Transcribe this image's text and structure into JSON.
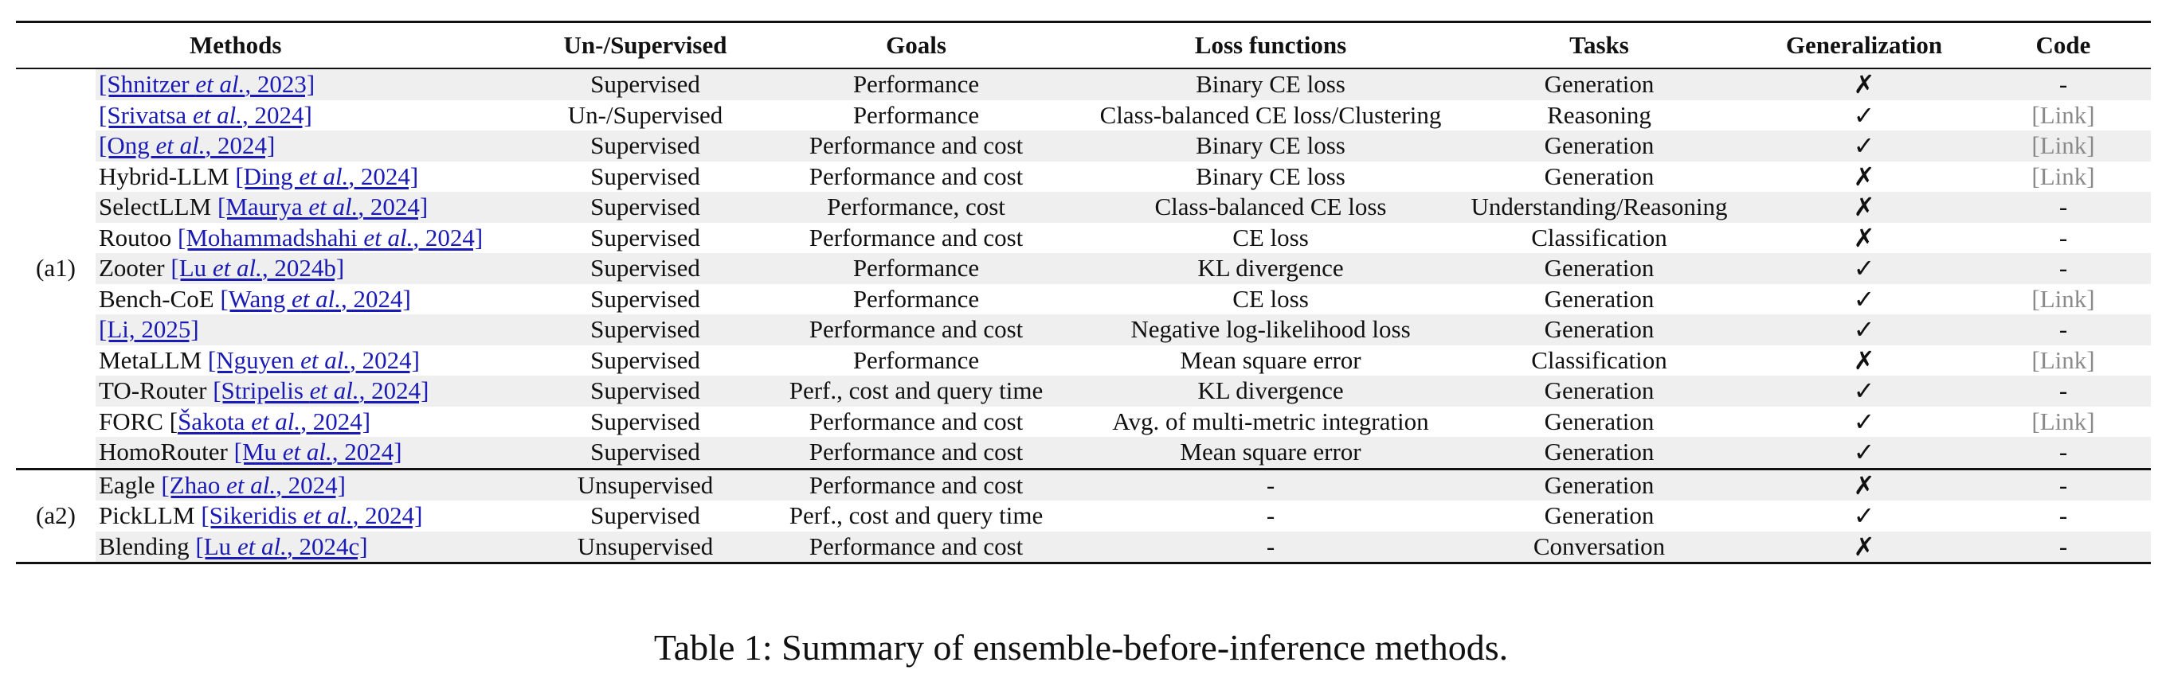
{
  "headers": {
    "group": "",
    "methods": "Methods",
    "supervision": "Un-/Supervised",
    "goals": "Goals",
    "loss": "Loss functions",
    "tasks": "Tasks",
    "generalization": "Generalization",
    "code": "Code"
  },
  "groups": [
    {
      "label": "(a1)",
      "rows": [
        {
          "name": "",
          "cite_pre": "[Shnitzer ",
          "cite_em": "et al.",
          "cite_post": ", 2023]",
          "supervision": "Supervised",
          "goals": "Performance",
          "loss": "Binary CE loss",
          "tasks": "Generation",
          "generalization": "✗",
          "code": "-"
        },
        {
          "name": "",
          "cite_pre": "[Srivatsa ",
          "cite_em": "et al.",
          "cite_post": ", 2024]",
          "supervision": "Un-/Supervised",
          "goals": "Performance",
          "loss": "Class-balanced CE loss/Clustering",
          "tasks": "Reasoning",
          "generalization": "✓",
          "code": "[Link]"
        },
        {
          "name": "",
          "cite_pre": "[Ong ",
          "cite_em": "et al.",
          "cite_post": ", 2024]",
          "supervision": "Supervised",
          "goals": "Performance and cost",
          "loss": "Binary CE loss",
          "tasks": "Generation",
          "generalization": "✓",
          "code": "[Link]"
        },
        {
          "name": "Hybrid-LLM ",
          "cite_pre": "[Ding ",
          "cite_em": "et al.",
          "cite_post": ", 2024]",
          "supervision": "Supervised",
          "goals": "Performance and cost",
          "loss": "Binary CE loss",
          "tasks": "Generation",
          "generalization": "✗",
          "code": "[Link]"
        },
        {
          "name": "SelectLLM ",
          "cite_pre": "[Maurya ",
          "cite_em": "et al.",
          "cite_post": ", 2024]",
          "supervision": "Supervised",
          "goals": "Performance, cost",
          "loss": "Class-balanced CE loss",
          "tasks": "Understanding/Reasoning",
          "generalization": "✗",
          "code": "-"
        },
        {
          "name": "Routoo ",
          "cite_pre": "[Mohammadshahi ",
          "cite_em": "et al.",
          "cite_post": ", 2024]",
          "supervision": "Supervised",
          "goals": "Performance and cost",
          "loss": "CE loss",
          "tasks": "Classification",
          "generalization": "✗",
          "code": "-"
        },
        {
          "name": "Zooter ",
          "cite_pre": "[Lu ",
          "cite_em": "et al.",
          "cite_post": ", 2024b]",
          "supervision": "Supervised",
          "goals": "Performance",
          "loss": "KL divergence",
          "tasks": "Generation",
          "generalization": "✓",
          "code": "-"
        },
        {
          "name": "Bench-CoE ",
          "cite_pre": "[Wang ",
          "cite_em": "et al.",
          "cite_post": ", 2024]",
          "supervision": "Supervised",
          "goals": "Performance",
          "loss": "CE loss",
          "tasks": "Generation",
          "generalization": "✓",
          "code": "[Link]"
        },
        {
          "name": "",
          "cite_pre": "[Li, 2025]",
          "cite_em": "",
          "cite_post": "",
          "supervision": "Supervised",
          "goals": "Performance and cost",
          "loss": "Negative log-likelihood loss",
          "tasks": "Generation",
          "generalization": "✓",
          "code": "-"
        },
        {
          "name": "MetaLLM ",
          "cite_pre": "[Nguyen ",
          "cite_em": "et al.",
          "cite_post": ", 2024]",
          "supervision": "Supervised",
          "goals": "Performance",
          "loss": "Mean square error",
          "tasks": "Classification",
          "generalization": "✗",
          "code": "[Link]"
        },
        {
          "name": "TO-Router ",
          "cite_pre": "[Stripelis ",
          "cite_em": "et al.",
          "cite_post": ", 2024]",
          "supervision": "Supervised",
          "goals": "Perf., cost and query time",
          "loss": "KL divergence",
          "tasks": "Generation",
          "generalization": "✓",
          "code": "-"
        },
        {
          "name": "FORC [",
          "cite_pre": "Šakota ",
          "cite_em": "et al.",
          "cite_post": ", 2024]",
          "supervision": "Supervised",
          "goals": "Performance and cost",
          "loss": "Avg. of multi-metric integration",
          "tasks": "Generation",
          "generalization": "✓",
          "code": "[Link]"
        },
        {
          "name": "HomoRouter ",
          "cite_pre": "[Mu ",
          "cite_em": "et al.",
          "cite_post": ", 2024]",
          "supervision": "Supervised",
          "goals": "Performance and cost",
          "loss": "Mean square error",
          "tasks": "Generation",
          "generalization": "✓",
          "code": "-"
        }
      ]
    },
    {
      "label": "(a2)",
      "rows": [
        {
          "name": "Eagle ",
          "cite_pre": "[Zhao ",
          "cite_em": "et al.",
          "cite_post": ", 2024]",
          "supervision": "Unsupervised",
          "goals": "Performance and cost",
          "loss": "-",
          "tasks": "Generation",
          "generalization": "✗",
          "code": "-"
        },
        {
          "name": "PickLLM ",
          "cite_pre": "[Sikeridis ",
          "cite_em": "et al.",
          "cite_post": ", 2024]",
          "supervision": "Supervised",
          "goals": "Perf., cost and query time",
          "loss": "-",
          "tasks": "Generation",
          "generalization": "✓",
          "code": "-"
        },
        {
          "name": "Blending ",
          "cite_pre": "[Lu ",
          "cite_em": "et al.",
          "cite_post": ", 2024c]",
          "supervision": "Unsupervised",
          "goals": "Performance and cost",
          "loss": "-",
          "tasks": "Conversation",
          "generalization": "✗",
          "code": "-"
        }
      ]
    }
  ],
  "caption": "Table 1: Summary of ensemble-before-inference methods.",
  "colors": {
    "link": "#1a1ab4",
    "code_link": "#8a8a8a",
    "row_shade": "#efefef",
    "rule": "#111111"
  }
}
